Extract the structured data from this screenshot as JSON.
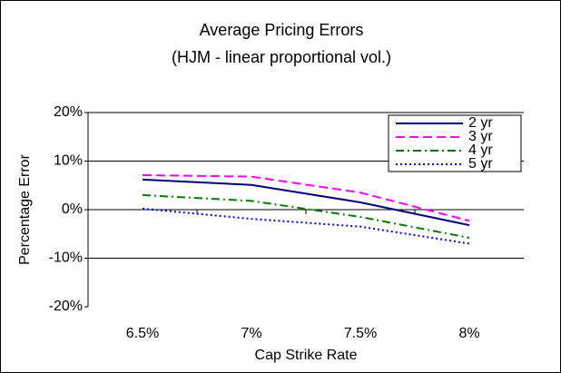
{
  "chart_data": {
    "type": "line",
    "title": "Average Pricing Errors",
    "subtitle": "(HJM - linear proportional vol.)",
    "x_label": "Cap Strike Rate",
    "y_label": "Percentage Error",
    "categories": [
      "6.5%",
      "7%",
      "7.5%",
      "8%"
    ],
    "series": [
      {
        "name": "2 yr",
        "color": "#000080",
        "dash": "solid",
        "values": [
          6.2,
          5.1,
          1.5,
          -3.2
        ]
      },
      {
        "name": "3 yr",
        "color": "#ff00ff",
        "dash": "dashed",
        "values": [
          7.1,
          6.8,
          3.5,
          -2.3
        ]
      },
      {
        "name": "4 yr",
        "color": "#008000",
        "dash": "dashdot",
        "values": [
          3.0,
          1.8,
          -1.5,
          -5.8
        ]
      },
      {
        "name": "5 yr",
        "color": "#0000ff",
        "dash": "dotted",
        "values": [
          0.2,
          -1.9,
          -3.5,
          -7.0
        ]
      }
    ],
    "ylim": [
      -20,
      20
    ],
    "yticks": [
      {
        "value": -20,
        "label": "-20%"
      },
      {
        "value": -10,
        "label": "-10%"
      },
      {
        "value": 0,
        "label": "0%"
      },
      {
        "value": 10,
        "label": "10%"
      },
      {
        "value": 20,
        "label": "20%"
      }
    ],
    "grid": true,
    "legend": "upper right"
  }
}
